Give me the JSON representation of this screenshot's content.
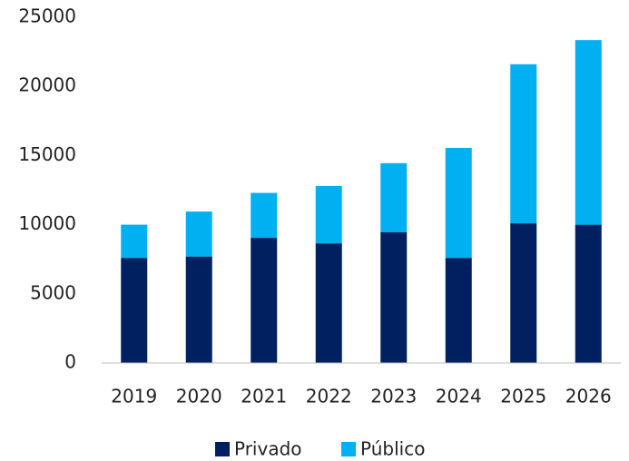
{
  "chart_data": {
    "type": "stacked_bar",
    "categories": [
      "2019",
      "2020",
      "2021",
      "2022",
      "2023",
      "2024",
      "2025",
      "2026"
    ],
    "series": [
      {
        "name": "Privado",
        "color": "#002060",
        "values": [
          7600,
          7700,
          9050,
          8650,
          9450,
          7600,
          10100,
          10000
        ]
      },
      {
        "name": "Público",
        "color": "#00b0f0",
        "values": [
          2400,
          3250,
          3250,
          4150,
          5000,
          7950,
          11500,
          13350
        ]
      }
    ],
    "ylim": [
      0,
      25000
    ],
    "yticks": [
      0,
      5000,
      10000,
      15000,
      20000,
      25000
    ],
    "grid": false,
    "legend": "bottom"
  }
}
